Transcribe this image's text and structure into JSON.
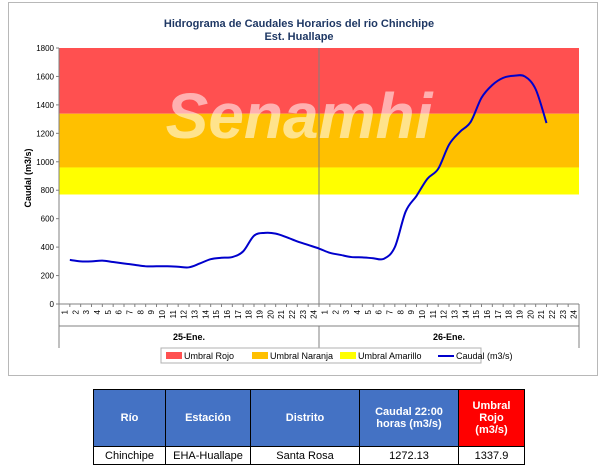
{
  "chart_data": {
    "type": "line",
    "title": "Hidrograma de Caudales Horarios del rio Chinchipe",
    "subtitle": "Est. Huallape",
    "watermark": "Senamhi",
    "ylabel": "Caudal  (m3/s)",
    "ylim": [
      0,
      1800
    ],
    "yticks": [
      0,
      200,
      400,
      600,
      800,
      1000,
      1200,
      1400,
      1600,
      1800
    ],
    "x_tick_labels": [
      "1",
      "2",
      "3",
      "4",
      "5",
      "6",
      "7",
      "8",
      "9",
      "10",
      "11",
      "12",
      "13",
      "14",
      "15",
      "16",
      "17",
      "18",
      "19",
      "20",
      "21",
      "22",
      "23",
      "24",
      "1",
      "2",
      "3",
      "4",
      "5",
      "6",
      "7",
      "8",
      "9",
      "10",
      "11",
      "12",
      "13",
      "14",
      "15",
      "16",
      "17",
      "18",
      "19",
      "20",
      "21",
      "22",
      "23",
      "24"
    ],
    "day_labels": [
      "25-Ene.",
      "26-Ene."
    ],
    "thresholds": [
      {
        "name": "Umbral Rojo",
        "from": 1337.9,
        "to": 1800,
        "color": "#ff5050"
      },
      {
        "name": "Umbral Naranja",
        "from": 960,
        "to": 1337.9,
        "color": "#ffc000"
      },
      {
        "name": "Umbral Amarillo",
        "from": 770,
        "to": 960,
        "color": "#ffff00"
      }
    ],
    "series": [
      {
        "name": "Caudal (m3/s)",
        "color": "#0000cc",
        "values": [
          310,
          300,
          300,
          305,
          295,
          285,
          275,
          265,
          265,
          265,
          262,
          258,
          285,
          315,
          325,
          330,
          370,
          480,
          500,
          495,
          470,
          440,
          415,
          390,
          360,
          345,
          330,
          328,
          322,
          318,
          400,
          650,
          760,
          880,
          950,
          1120,
          1210,
          1280,
          1450,
          1540,
          1590,
          1605,
          1600,
          1510,
          1272.13
        ]
      }
    ]
  },
  "table": {
    "headers": [
      "Río",
      "Estación",
      "Distrito",
      "Caudal 22:00 horas (m3/s)",
      "Umbral Rojo (m3/s)"
    ],
    "row": [
      "Chinchipe",
      "EHA-Huallape",
      "Santa Rosa",
      "1272.13",
      "1337.9"
    ]
  }
}
